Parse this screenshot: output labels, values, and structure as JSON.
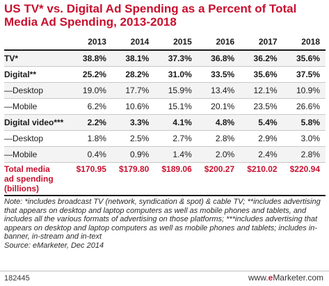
{
  "title": "US TV* vs. Digital Ad Spending as a Percent of Total Media Ad Spending, 2013-2018",
  "footer": {
    "id": "182445",
    "site_prefix": "www.",
    "site_brand": "e",
    "site_suffix": "Marketer.com"
  },
  "note": "Note: *includes broadcast TV (network, syndication & spot) & cable TV; **includes advertising that appears on desktop and laptop computers as well as mobile phones and tablets, and includes all the various formats of advertising on those platforms; ***includes advertising that appears on desktop and laptop computers as well as mobile phones and tablets; includes in-banner, in-stream and in-text",
  "source": "Source: eMarketer, Dec 2014",
  "chart_data": {
    "type": "table",
    "title": "US TV* vs. Digital Ad Spending as a Percent of Total Media Ad Spending, 2013-2018",
    "columns": [
      "2013",
      "2014",
      "2015",
      "2016",
      "2017",
      "2018"
    ],
    "rows": [
      {
        "label": "TV*",
        "values": [
          "38.8%",
          "38.1%",
          "37.3%",
          "36.8%",
          "36.2%",
          "35.6%"
        ],
        "bold": true,
        "band": true
      },
      {
        "label": "Digital**",
        "values": [
          "25.2%",
          "28.2%",
          "31.0%",
          "33.5%",
          "35.6%",
          "37.5%"
        ],
        "bold": true,
        "band": false
      },
      {
        "label": "—Desktop",
        "values": [
          "19.0%",
          "17.7%",
          "15.9%",
          "13.4%",
          "12.1%",
          "10.9%"
        ],
        "bold": false,
        "band": true
      },
      {
        "label": "—Mobile",
        "values": [
          "6.2%",
          "10.6%",
          "15.1%",
          "20.1%",
          "23.5%",
          "26.6%"
        ],
        "bold": false,
        "band": false
      },
      {
        "label": "Digital video***",
        "values": [
          "2.2%",
          "3.3%",
          "4.1%",
          "4.8%",
          "5.4%",
          "5.8%"
        ],
        "bold": true,
        "band": true
      },
      {
        "label": "—Desktop",
        "values": [
          "1.8%",
          "2.5%",
          "2.7%",
          "2.8%",
          "2.9%",
          "3.0%"
        ],
        "bold": false,
        "band": false
      },
      {
        "label": "—Mobile",
        "values": [
          "0.4%",
          "0.9%",
          "1.4%",
          "2.0%",
          "2.4%",
          "2.8%"
        ],
        "bold": false,
        "band": true
      }
    ],
    "total": {
      "label_lines": [
        "Total media",
        "ad spending",
        "(billions)"
      ],
      "values": [
        "$170.95",
        "$179.80",
        "$189.06",
        "$200.27",
        "$210.02",
        "$220.94"
      ],
      "color": "#c8102e"
    }
  }
}
